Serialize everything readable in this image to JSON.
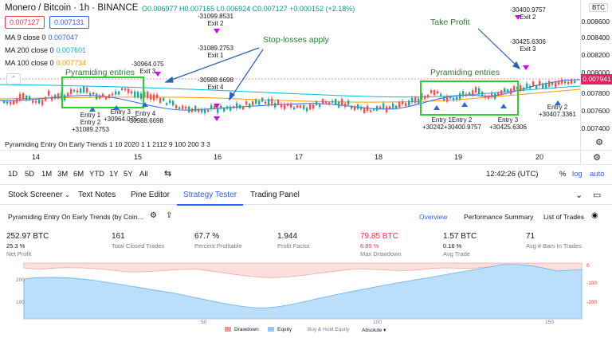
{
  "header": {
    "symbol_title": "Monero / Bitcoin · 1h · BINANCE",
    "ohlc": "O0.006977 H0.007165 L0.006924 C0.007127 +0.000152 (+2.18%)",
    "sell_price": "0.007127",
    "buy_price": "0.007131",
    "currency_badge": "BTC"
  },
  "indicators": [
    {
      "name": "MA 9 close 0",
      "value": "0.007047",
      "color": "#2962ff"
    },
    {
      "name": "MA 200 close 0",
      "value": "0.007601",
      "color": "#00bcd4"
    },
    {
      "name": "MA 100 close 0",
      "value": "0.007734",
      "color": "#ff9800"
    }
  ],
  "price_axis": {
    "ticks": [
      "0.008600",
      "0.008400",
      "0.008200",
      "0.008000",
      "0.007800",
      "0.007600",
      "0.007400"
    ],
    "last_price": "0.007941",
    "last_price_color": "#e91e63"
  },
  "time_axis": {
    "ticks": [
      "14",
      "15",
      "16",
      "17",
      "18",
      "19",
      "20"
    ]
  },
  "annotations": {
    "stop_losses_apply": "Stop-losses apply",
    "pyramiding_left": "Pyramiding entries",
    "pyramiding_right": "Pyramiding entries",
    "take_profit": "Take Profit"
  },
  "trade_labels": [
    {
      "text": "-30964.075\nExit 3"
    },
    {
      "text": "-31099.8531\nExit 2"
    },
    {
      "text": "-31089.2753\nExit 1"
    },
    {
      "text": "-30988.6698\nExit 4"
    },
    {
      "text": "Entry 1\nEntry 2\n+31089.2753"
    },
    {
      "text": "Entry 3\n+30964.075"
    },
    {
      "text": "Entry 4\n-30988.6698"
    },
    {
      "text": "Entry 1Entry 2\n+30242+30400.9757"
    },
    {
      "text": "Entry 3\n+30425.6306"
    },
    {
      "text": "Entry 2\n+30407.3361"
    },
    {
      "text": "-30400.9757\nExit 2"
    },
    {
      "text": "-30425.6306\nExit 3"
    }
  ],
  "strategy_overlay_title": "Pyramiding Entry On Early Trends 1 10 2020 1 1 2112 9 100 200 3 3",
  "timeframes": [
    "1D",
    "5D",
    "1M",
    "3M",
    "6M",
    "YTD",
    "1Y",
    "5Y",
    "All"
  ],
  "time_display": "12:42:26 (UTC)",
  "scale_options": [
    "%",
    "log",
    "auto"
  ],
  "bottom_tabs": [
    "Stock Screener",
    "Text Notes",
    "Pine Editor",
    "Strategy Tester",
    "Trading Panel"
  ],
  "active_tab": "Strategy Tester",
  "strategy_panel": {
    "title": "Pyramiding Entry On Early Trends (by Coin...",
    "tabs": [
      "Overview",
      "Performance Summary",
      "List of Trades"
    ],
    "active": "Overview"
  },
  "metrics": [
    {
      "value": "252.97 BTC",
      "sub": "25.3 %",
      "label": "Net Profit",
      "red": false
    },
    {
      "value": "161",
      "sub": "",
      "label": "Total Closed Trades",
      "red": false
    },
    {
      "value": "67.7 %",
      "sub": "",
      "label": "Percent Profitable",
      "red": false
    },
    {
      "value": "1.944",
      "sub": "",
      "label": "Profit Factor",
      "red": false
    },
    {
      "value": "79.85 BTC",
      "sub": "6.89 %",
      "label": "Max Drawdown",
      "red": true
    },
    {
      "value": "1.57 BTC",
      "sub": "0.16 %",
      "label": "Avg Trade",
      "red": false
    },
    {
      "value": "71",
      "sub": "",
      "label": "Avg # Bars In Trades",
      "red": false
    }
  ],
  "equity_chart": {
    "left_ticks": [
      "200",
      "100"
    ],
    "right_ticks": [
      "0",
      "-100",
      "-200"
    ],
    "x_ticks": [
      "50",
      "100",
      "150"
    ],
    "legend": [
      "Drawdown",
      "Equity",
      "Buy & Hold Equity",
      "Absolute"
    ],
    "drawdown_color": "#ef9a9a",
    "equity_color": "#90caf9"
  }
}
